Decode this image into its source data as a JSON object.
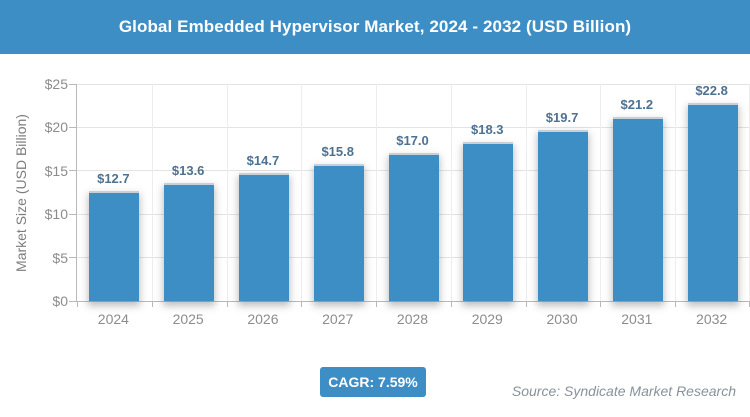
{
  "header": {
    "title": "Global Embedded Hypervisor Market, 2024 - 2032 (USD Billion)"
  },
  "chart_data": {
    "type": "bar",
    "title": "Global Embedded Hypervisor Market, 2024 - 2032 (USD Billion)",
    "categories": [
      "2024",
      "2025",
      "2026",
      "2027",
      "2028",
      "2029",
      "2030",
      "2031",
      "2032"
    ],
    "values": [
      12.7,
      13.6,
      14.7,
      15.8,
      17.0,
      18.3,
      19.7,
      21.2,
      22.8
    ],
    "value_labels": [
      "$12.7",
      "$13.6",
      "$14.7",
      "$15.8",
      "$17.0",
      "$18.3",
      "$19.7",
      "$21.2",
      "$22.8"
    ],
    "xlabel": "",
    "ylabel": "Market Size (USD Billion)",
    "ylim": [
      0,
      25
    ],
    "yticks": [
      {
        "value": 0,
        "label": "$0"
      },
      {
        "value": 5,
        "label": "$5"
      },
      {
        "value": 10,
        "label": "$10"
      },
      {
        "value": 15,
        "label": "$15"
      },
      {
        "value": 20,
        "label": "$20"
      },
      {
        "value": 25,
        "label": "$25"
      }
    ],
    "grid": true,
    "legend": "none"
  },
  "footer": {
    "cagr_label": "CAGR: 7.59%",
    "source": "Source: Syndicate Market Research"
  },
  "colors": {
    "banner_bg": "#3e8ec6",
    "bar": "#3e8ec6",
    "bar_top_edge": "#c6d0d8",
    "value_label_text": "#4e7191",
    "axis_text": "#8c8c8c",
    "axis_line": "#b9b9b9",
    "hgrid": "#e3e3e3",
    "vgrid": "#ededed",
    "cagr_bg": "#3e8ec6",
    "source_text": "#87929b"
  }
}
